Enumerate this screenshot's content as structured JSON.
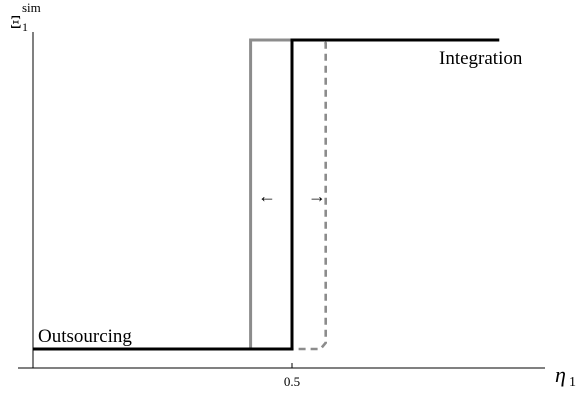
{
  "chart_data": {
    "type": "line",
    "y_axis_symbol": "Ξ",
    "y_axis_subscript": "1",
    "y_axis_superscript": "sim",
    "x_axis_symbol": "η",
    "x_axis_subscript": "1",
    "x_ticks": [
      {
        "value": 0.5,
        "label": "0.5"
      }
    ],
    "xlim": [
      0.0,
      0.9
    ],
    "ylim": [
      0,
      1
    ],
    "series": [
      {
        "style": "solid-black",
        "color": "#000000",
        "points": [
          [
            0.0,
            0
          ],
          [
            0.5,
            0
          ],
          [
            0.5,
            1
          ],
          [
            0.9,
            1
          ]
        ]
      },
      {
        "style": "solid-gray",
        "color": "#8c8c8c",
        "points": [
          [
            0.0,
            0
          ],
          [
            0.42,
            0
          ],
          [
            0.42,
            1
          ],
          [
            0.9,
            1
          ]
        ]
      },
      {
        "style": "dashed-gray",
        "color": "#8c8c8c",
        "points": [
          [
            0.42,
            0
          ],
          [
            0.555,
            0
          ],
          [
            0.565,
            0.02
          ],
          [
            0.565,
            0.99
          ],
          [
            0.56,
            1
          ],
          [
            0.9,
            1
          ]
        ]
      }
    ],
    "annotations": {
      "top_right": "Integration",
      "bottom_left": "Outsourcing",
      "arrow_left": "←",
      "arrow_right": "→"
    }
  }
}
